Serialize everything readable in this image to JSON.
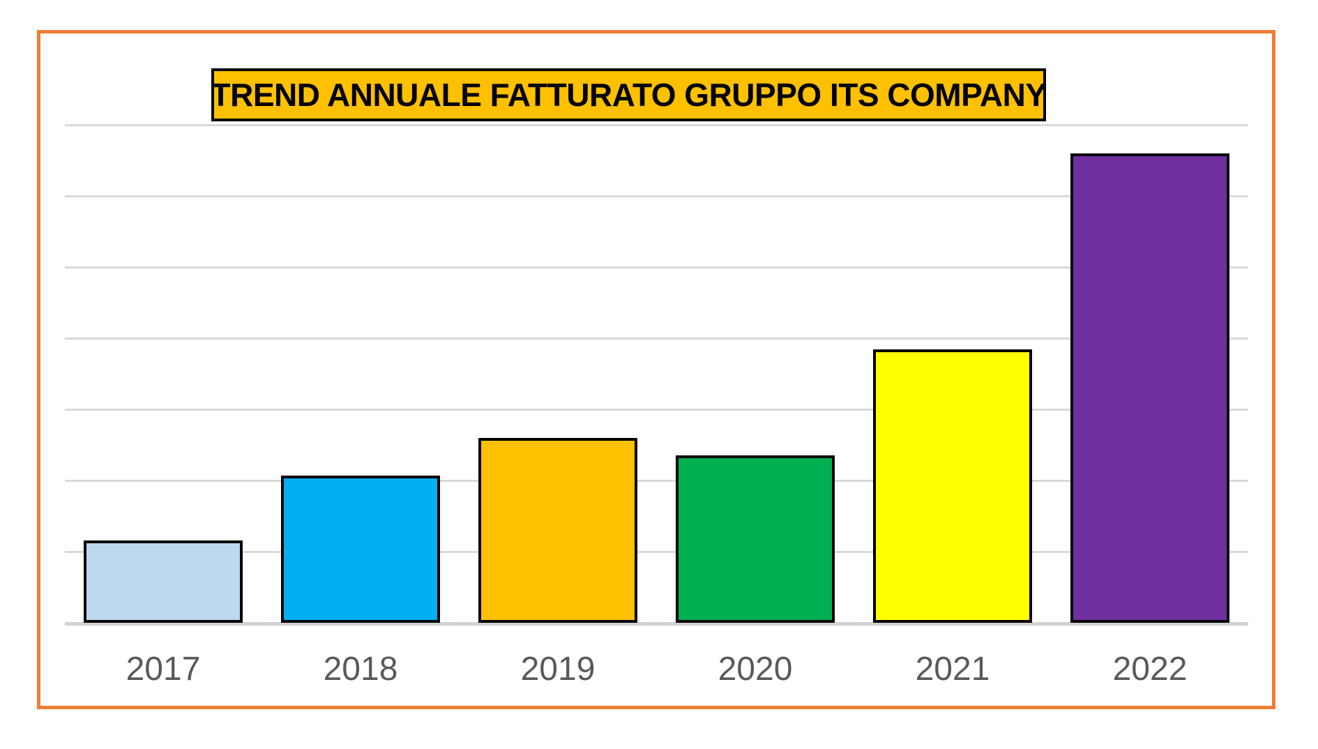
{
  "frame": {
    "border_color": "#ED7D31"
  },
  "title": {
    "text": "TREND ANNUALE FATTURATO GRUPPO ITS COMPANY",
    "background": "#FFC000",
    "border_color": "#000000",
    "text_color": "#000000"
  },
  "chart_data": {
    "type": "bar",
    "title": "TREND ANNUALE FATTURATO GRUPPO ITS COMPANY",
    "categories": [
      "2017",
      "2018",
      "2019",
      "2020",
      "2021",
      "2022"
    ],
    "values": [
      1.16,
      2.07,
      2.6,
      2.35,
      3.84,
      6.6
    ],
    "values_estimated_from_gridlines": true,
    "xlabel": "",
    "ylabel": "",
    "ylim": [
      0,
      7
    ],
    "gridline_interval": 1,
    "grid": true,
    "legend": "none",
    "bar_colors": [
      "#BDD7EE",
      "#00B0F0",
      "#FFC000",
      "#00B050",
      "#FFFF00",
      "#7030A0"
    ],
    "bar_border_color": "#000000",
    "gridline_color": "#D9D9D9",
    "axis_line_color": "#D2D2D2",
    "tick_label_color": "#595959"
  }
}
